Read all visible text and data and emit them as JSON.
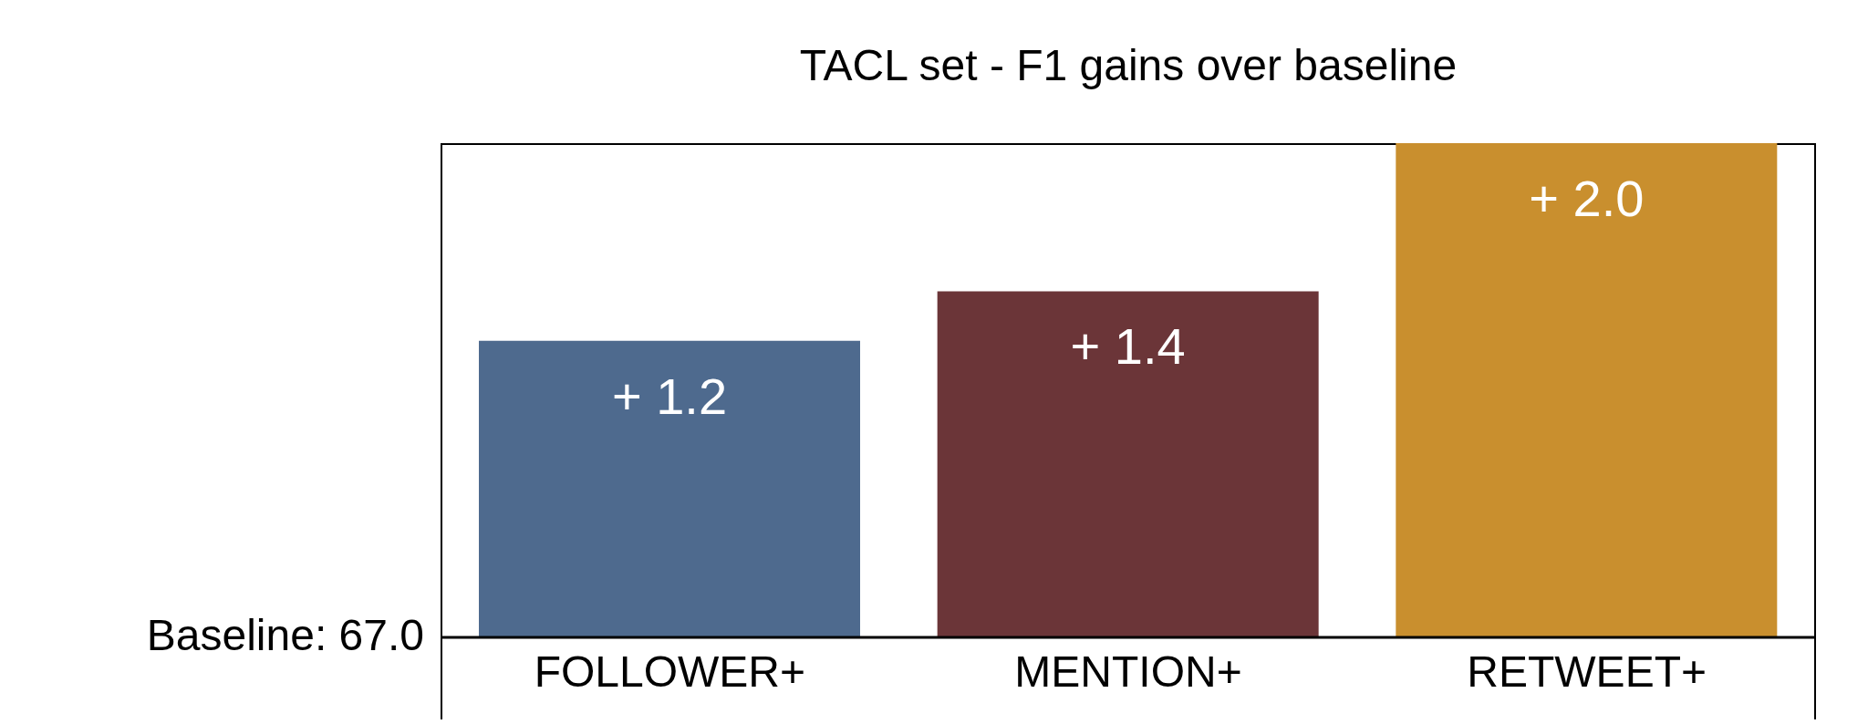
{
  "chart_data": {
    "type": "bar",
    "title": "TACL set - F1 gains over baseline",
    "categories": [
      "FOLLOWER+",
      "MENTION+",
      "RETWEET+"
    ],
    "values": [
      1.2,
      1.4,
      2.0
    ],
    "colors": [
      "#4e6a8e",
      "#6b3538",
      "#c98f2e"
    ],
    "value_labels": [
      "+ 1.2",
      "+ 1.4",
      "+ 2.0"
    ],
    "ylim": [
      0,
      2.0
    ],
    "annotations": [
      "Baseline: 67.0"
    ]
  }
}
